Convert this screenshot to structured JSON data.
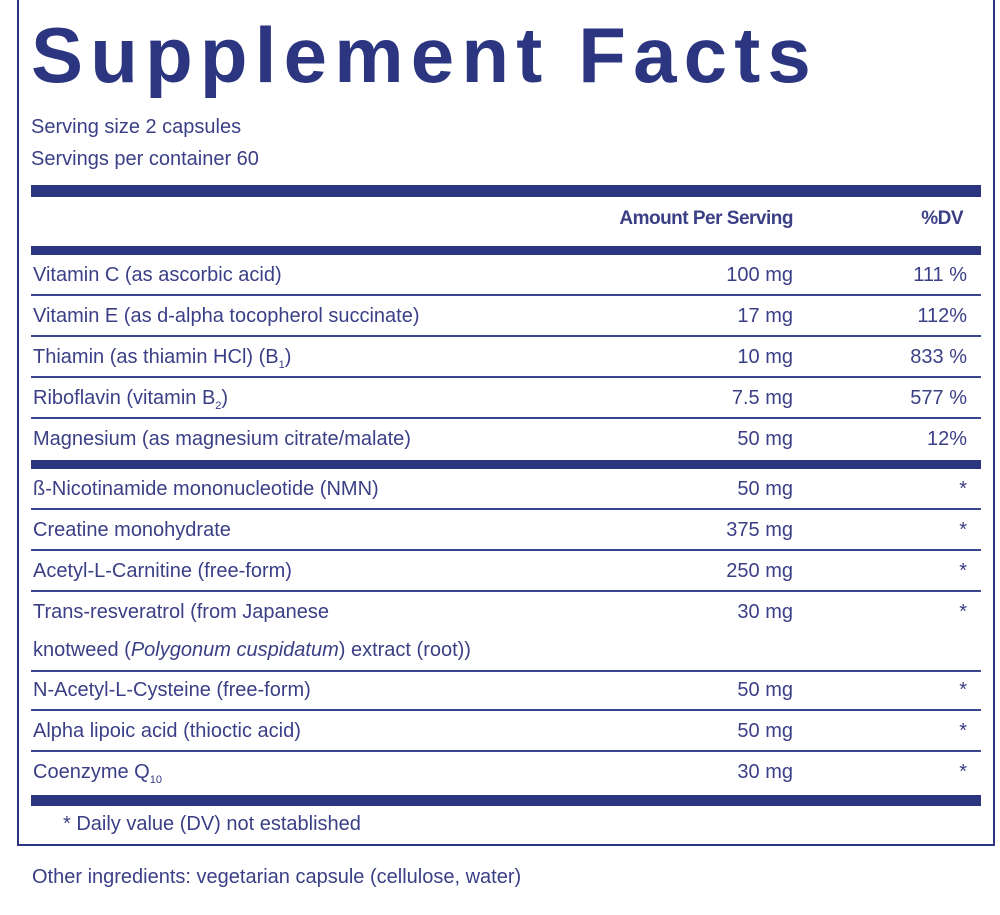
{
  "title": "Supplement Facts",
  "serving_size": "Serving size  2 capsules",
  "servings_per_container": "Servings per container  60",
  "headers": {
    "amount": "Amount Per Serving",
    "dv": "%DV"
  },
  "group1": [
    {
      "name": "Vitamin C (as ascorbic acid)",
      "sub": "",
      "suffix": "",
      "amount": "100 mg",
      "dv": "111 %"
    },
    {
      "name": "Vitamin E (as d-alpha tocopherol succinate)",
      "sub": "",
      "suffix": "",
      "amount": "17 mg",
      "dv": "112%"
    },
    {
      "name": "Thiamin (as thiamin HCl) (B",
      "sub": "1",
      "suffix": ")",
      "amount": "10 mg",
      "dv": "833 %"
    },
    {
      "name": "Riboflavin (vitamin B",
      "sub": "2",
      "suffix": ")",
      "amount": "7.5 mg",
      "dv": "577 %"
    },
    {
      "name": "Magnesium (as magnesium citrate/malate)",
      "sub": "",
      "suffix": "",
      "amount": "50 mg",
      "dv": "12%"
    }
  ],
  "group2": [
    {
      "name": "ß-Nicotinamide mononucleotide (NMN)",
      "amount": "50 mg",
      "dv": "*"
    },
    {
      "name": "Creatine monohydrate",
      "amount": "375 mg",
      "dv": "*"
    },
    {
      "name": "Acetyl-L-Carnitine (free-form)",
      "amount": "250 mg",
      "dv": "*"
    }
  ],
  "resveratrol": {
    "line1": "Trans-resveratrol  (from Japanese",
    "line2_pre": "knotweed (",
    "line2_italic": "Polygonum cuspidatum",
    "line2_post": ") extract (root))",
    "amount": "30 mg",
    "dv": "*"
  },
  "group3": [
    {
      "name": "N-Acetyl-L-Cysteine (free-form)",
      "sub": "",
      "amount": "50 mg",
      "dv": "*"
    },
    {
      "name": "Alpha lipoic acid (thioctic acid)",
      "sub": "",
      "amount": "50 mg",
      "dv": "*"
    },
    {
      "name": "Coenzyme Q",
      "sub": "10",
      "amount": "30 mg",
      "dv": "*"
    }
  ],
  "footnote": "*  Daily value (DV) not established",
  "other_ingredients": "Other ingredients: vegetarian capsule (cellulose, water)",
  "colors": {
    "navy": "#2b3580",
    "text": "#3a3f86"
  }
}
